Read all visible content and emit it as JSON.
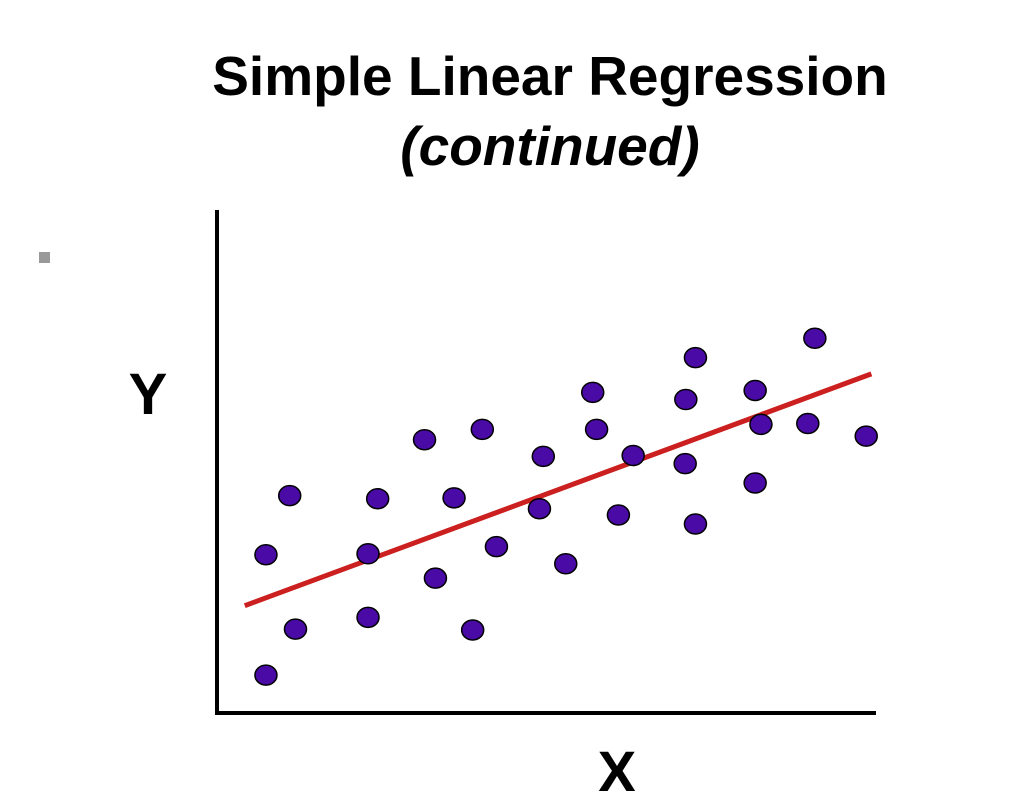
{
  "slide": {
    "title": "Simple Linear Regression",
    "subtitle": "(continued)"
  },
  "colors": {
    "point_fill": "#4a0aa6",
    "point_stroke": "#000000",
    "regression_line": "#cc1f1f",
    "axis": "#000000",
    "bullet": "#999999"
  },
  "chart_data": {
    "type": "scatter",
    "xlabel": "X",
    "ylabel": "Y",
    "xlim": [
      0,
      100
    ],
    "ylim": [
      0,
      100
    ],
    "grid": false,
    "legend": "none",
    "points": [
      {
        "x": 5.6,
        "y": 8.4
      },
      {
        "x": 5.6,
        "y": 35.1
      },
      {
        "x": 10.2,
        "y": 18.6
      },
      {
        "x": 9.3,
        "y": 48.2
      },
      {
        "x": 21.5,
        "y": 21.2
      },
      {
        "x": 21.5,
        "y": 35.3
      },
      {
        "x": 23.0,
        "y": 47.5
      },
      {
        "x": 30.3,
        "y": 60.6
      },
      {
        "x": 32.0,
        "y": 29.9
      },
      {
        "x": 34.9,
        "y": 47.7
      },
      {
        "x": 37.8,
        "y": 18.4
      },
      {
        "x": 39.3,
        "y": 62.9
      },
      {
        "x": 41.5,
        "y": 36.9
      },
      {
        "x": 48.2,
        "y": 45.3
      },
      {
        "x": 48.8,
        "y": 56.9
      },
      {
        "x": 52.3,
        "y": 33.1
      },
      {
        "x": 56.5,
        "y": 71.1
      },
      {
        "x": 57.1,
        "y": 62.9
      },
      {
        "x": 60.5,
        "y": 43.9
      },
      {
        "x": 62.8,
        "y": 57.1
      },
      {
        "x": 70.9,
        "y": 55.3
      },
      {
        "x": 71.0,
        "y": 69.5
      },
      {
        "x": 72.5,
        "y": 41.9
      },
      {
        "x": 72.5,
        "y": 78.8
      },
      {
        "x": 81.8,
        "y": 51.0
      },
      {
        "x": 81.8,
        "y": 71.5
      },
      {
        "x": 82.7,
        "y": 64.0
      },
      {
        "x": 90.0,
        "y": 64.2
      },
      {
        "x": 91.1,
        "y": 83.1
      },
      {
        "x": 99.1,
        "y": 61.4
      }
    ],
    "regression_line": {
      "x": [
        2.3,
        99.9
      ],
      "y": [
        23.8,
        75.2
      ]
    }
  }
}
